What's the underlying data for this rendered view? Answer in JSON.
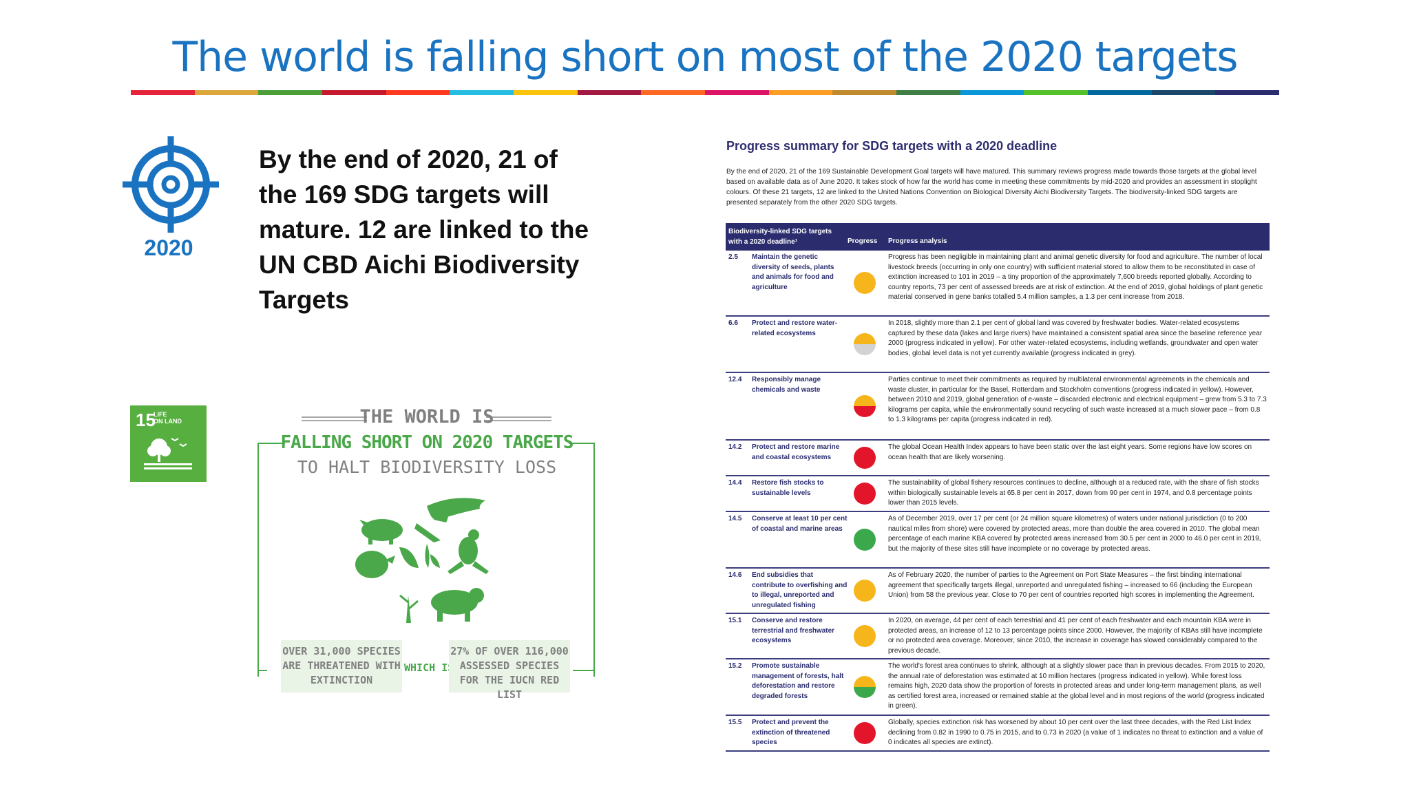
{
  "slide": {
    "title": "The world is falling short on most of the 2020 targets",
    "colorbar": [
      "#e5243b",
      "#dda63a",
      "#4c9f38",
      "#c5192d",
      "#ff3a21",
      "#26bde2",
      "#fcc30b",
      "#a21942",
      "#fd6925",
      "#dd1367",
      "#fd9d24",
      "#bf8b2e",
      "#3f7e44",
      "#0a97d9",
      "#56c02b",
      "#00689d",
      "#19486a",
      "#2a2c6e"
    ],
    "year_label": "2020",
    "lead_text": "By the end of 2020, 21 of the 169 SDG targets will mature. 12 are linked to the UN CBD Aichi Biodiversity Targets",
    "sdg_badge": {
      "number": "15",
      "label_line1": "LIFE",
      "label_line2": "ON LAND",
      "color": "#56af3f"
    }
  },
  "infographic": {
    "heading1": "THE WORLD IS",
    "heading2": "FALLING SHORT ON 2020 TARGETS",
    "heading3": "TO HALT BIODIVERSITY LOSS",
    "box_left": "OVER 31,000 SPECIES ARE THREATENED WITH EXTINCTION",
    "connector": "WHICH IS",
    "box_right": "27% OF OVER 116,000 ASSESSED SPECIES FOR THE IUCN RED LIST",
    "green": "#4aa84a"
  },
  "report": {
    "title": "Progress summary for SDG targets with a 2020 deadline",
    "intro": "By the end of 2020, 21 of the 169 Sustainable Development Goal targets will have matured. This summary reviews progress made towards those targets at the global level based on available data as of June 2020. It takes stock of how far the world has come in meeting these commitments by mid-2020 and provides an assessment in stoplight colours. Of these 21 targets, 12 are linked to the United Nations Convention on Biological Diversity Aichi Biodiversity Targets. The biodiversity-linked SDG targets are presented separately from the other 2020 SDG targets.",
    "col_target": "Biodiversity-linked SDG targets with a 2020 deadline¹",
    "col_progress": "Progress",
    "col_analysis": "Progress analysis",
    "rows": [
      {
        "code": "2.5",
        "name": "Maintain the genetic diversity of seeds, plants and animals for food and agriculture",
        "status": "yellow",
        "analysis": "Progress has been negligible in maintaining plant and animal genetic diversity for food and agriculture. The number of local livestock breeds (occurring in only one country) with sufficient material stored to allow them to be reconstituted in case of extinction increased to 101 in 2019 – a tiny proportion of the approximately 7,600 breeds reported globally. According to country reports, 73 per cent of assessed breeds are at risk of extinction. At the end of 2019, global holdings of plant genetic material conserved in gene banks totalled 5.4 million samples, a 1.3 per cent increase from 2018."
      },
      {
        "code": "6.6",
        "name": "Protect and restore water-related ecosystems",
        "status": "yellow-grey",
        "analysis": "In 2018, slightly more than 2.1 per cent of global land was covered by freshwater bodies. Water-related ecosystems captured by these data (lakes and large rivers) have maintained a consistent spatial area since the baseline reference year 2000 (progress indicated in yellow). For other water-related ecosystems, including wetlands, groundwater and open water bodies, global level data is not yet currently available (progress indicated in grey)."
      },
      {
        "code": "12.4",
        "name": "Responsibly manage chemicals and waste",
        "status": "yellow-red",
        "analysis": "Parties continue to meet their commitments as required by multilateral environmental agreements in the chemicals and waste cluster, in particular for the Basel, Rotterdam and Stockholm conventions (progress indicated in yellow). However, between 2010 and 2019, global generation of e-waste – discarded electronic and electrical equipment – grew from 5.3 to 7.3 kilograms per capita, while the environmentally sound recycling of such waste increased at a much slower pace – from 0.8 to 1.3 kilograms per capita (progress indicated in red)."
      },
      {
        "code": "14.2",
        "name": "Protect and restore marine and coastal ecosystems",
        "status": "red",
        "analysis": "The global Ocean Health Index appears to have been static over the last eight years. Some regions have low scores on ocean health that are likely worsening."
      },
      {
        "code": "14.4",
        "name": "Restore fish stocks to sustainable levels",
        "status": "red",
        "analysis": "The sustainability of global fishery resources continues to decline, although at a reduced rate, with the share of fish stocks within biologically sustainable levels at 65.8 per cent in 2017, down from 90 per cent in 1974, and 0.8 percentage points lower than 2015 levels."
      },
      {
        "code": "14.5",
        "name": "Conserve at least 10 per cent of coastal and marine areas",
        "status": "green",
        "analysis": "As of December 2019, over 17 per cent (or 24 million square kilometres) of waters under national jurisdiction (0 to 200 nautical miles from shore) were covered by protected areas, more than double the area covered in 2010. The global mean percentage of each marine KBA covered by protected areas increased from 30.5 per cent in 2000 to 46.0 per cent in 2019, but the majority of these sites still have incomplete or no coverage by protected areas."
      },
      {
        "code": "14.6",
        "name": "End subsidies that contribute to overfishing and to illegal, unreported and unregulated fishing",
        "status": "yellow",
        "analysis": "As of February 2020, the number of parties to the Agreement on Port State Measures – the first binding international agreement that specifically targets illegal, unreported and unregulated fishing – increased to 66 (including the European Union) from 58 the previous year. Close to 70 per cent of countries reported high scores in implementing the Agreement."
      },
      {
        "code": "15.1",
        "name": "Conserve and restore terrestrial and freshwater ecosystems",
        "status": "yellow",
        "analysis": "In 2020, on average, 44 per cent of each terrestrial and 41 per cent of each freshwater and each mountain KBA were in protected areas, an increase of 12 to 13 percentage points since 2000. However, the majority of KBAs still have incomplete or no protected area coverage. Moreover, since 2010, the increase in coverage has slowed considerably compared to the previous decade."
      },
      {
        "code": "15.2",
        "name": "Promote sustainable management of forests, halt deforestation and restore degraded forests",
        "status": "yellow-green",
        "analysis": "The world's forest area continues to shrink, although at a slightly slower pace than in previous decades. From 2015 to 2020, the annual rate of deforestation was estimated at 10 million hectares (progress indicated in yellow). While forest loss remains high, 2020 data show the proportion of forests in protected areas and under long-term management plans, as well as certified forest area, increased or remained stable at the global level and in most regions of the world (progress indicated in green)."
      },
      {
        "code": "15.5",
        "name": "Protect and prevent the extinction of threatened species",
        "status": "red",
        "analysis": "Globally, species extinction risk has worsened by about 10 per cent over the last three decades, with the Red List Index declining from 0.82 in 1990 to 0.75 in 2015, and to 0.73 in 2020 (a value of 1 indicates no threat to extinction and a value of 0 indicates all species are extinct)."
      }
    ],
    "status_colors": {
      "yellow": "#f7b51c",
      "red": "#e3152b",
      "green": "#3aa84b",
      "grey": "#d3d3d3"
    }
  }
}
